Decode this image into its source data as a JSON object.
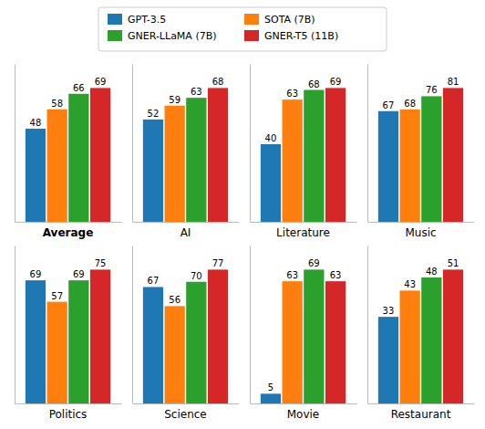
{
  "chart_data": [
    {
      "type": "bar",
      "x_label": "Average",
      "legend": "top",
      "data_labels": true,
      "tick_labels": false,
      "ylim": [
        0,
        81.42
      ],
      "series": [
        {
          "name": "GPT-3.5",
          "values": [
            48
          ]
        },
        {
          "name": "SOTA (7B)",
          "values": [
            58
          ]
        },
        {
          "name": "GNER-LLaMA (7B)",
          "values": [
            66
          ]
        },
        {
          "name": "GNER-T5 (11B)",
          "values": [
            69
          ]
        }
      ]
    },
    {
      "type": "bar",
      "x_label": "AI",
      "data_labels": true,
      "tick_labels": false,
      "ylim": [
        0,
        80.24
      ],
      "series": [
        {
          "name": "GPT-3.5",
          "values": [
            52
          ]
        },
        {
          "name": "SOTA (7B)",
          "values": [
            59
          ]
        },
        {
          "name": "GNER-LLaMA (7B)",
          "values": [
            63
          ]
        },
        {
          "name": "GNER-T5 (11B)",
          "values": [
            68
          ]
        }
      ]
    },
    {
      "type": "bar",
      "x_label": "Literature",
      "data_labels": true,
      "tick_labels": false,
      "ylim": [
        0,
        81.42
      ],
      "series": [
        {
          "name": "GPT-3.5",
          "values": [
            40
          ]
        },
        {
          "name": "SOTA (7B)",
          "values": [
            63
          ]
        },
        {
          "name": "GNER-LLaMA (7B)",
          "values": [
            68
          ]
        },
        {
          "name": "GNER-T5 (11B)",
          "values": [
            69
          ]
        }
      ]
    },
    {
      "type": "bar",
      "x_label": "Music",
      "data_labels": true,
      "tick_labels": false,
      "ylim": [
        0,
        95.58
      ],
      "series": [
        {
          "name": "GPT-3.5",
          "values": [
            67
          ]
        },
        {
          "name": "SOTA (7B)",
          "values": [
            68
          ]
        },
        {
          "name": "GNER-LLaMA (7B)",
          "values": [
            76
          ]
        },
        {
          "name": "GNER-T5 (11B)",
          "values": [
            81
          ]
        }
      ]
    },
    {
      "type": "bar",
      "x_label": "Politics",
      "data_labels": true,
      "tick_labels": false,
      "ylim": [
        0,
        88.5
      ],
      "series": [
        {
          "name": "GPT-3.5",
          "values": [
            69
          ]
        },
        {
          "name": "SOTA (7B)",
          "values": [
            57
          ]
        },
        {
          "name": "GNER-LLaMA (7B)",
          "values": [
            69
          ]
        },
        {
          "name": "GNER-T5 (11B)",
          "values": [
            75
          ]
        }
      ]
    },
    {
      "type": "bar",
      "x_label": "Science",
      "data_labels": true,
      "tick_labels": false,
      "ylim": [
        0,
        90.86
      ],
      "series": [
        {
          "name": "GPT-3.5",
          "values": [
            67
          ]
        },
        {
          "name": "SOTA (7B)",
          "values": [
            56
          ]
        },
        {
          "name": "GNER-LLaMA (7B)",
          "values": [
            70
          ]
        },
        {
          "name": "GNER-T5 (11B)",
          "values": [
            77
          ]
        }
      ]
    },
    {
      "type": "bar",
      "x_label": "Movie",
      "data_labels": true,
      "tick_labels": false,
      "ylim": [
        0,
        81.42
      ],
      "series": [
        {
          "name": "GPT-3.5",
          "values": [
            5
          ]
        },
        {
          "name": "SOTA (7B)",
          "values": [
            63
          ]
        },
        {
          "name": "GNER-LLaMA (7B)",
          "values": [
            69
          ]
        },
        {
          "name": "GNER-T5 (11B)",
          "values": [
            63
          ]
        }
      ]
    },
    {
      "type": "bar",
      "x_label": "Restaurant",
      "data_labels": true,
      "tick_labels": false,
      "ylim": [
        0,
        60.18
      ],
      "series": [
        {
          "name": "GPT-3.5",
          "values": [
            33
          ]
        },
        {
          "name": "SOTA (7B)",
          "values": [
            43
          ]
        },
        {
          "name": "GNER-LLaMA (7B)",
          "values": [
            48
          ]
        },
        {
          "name": "GNER-T5 (11B)",
          "values": [
            51
          ]
        }
      ]
    }
  ]
}
